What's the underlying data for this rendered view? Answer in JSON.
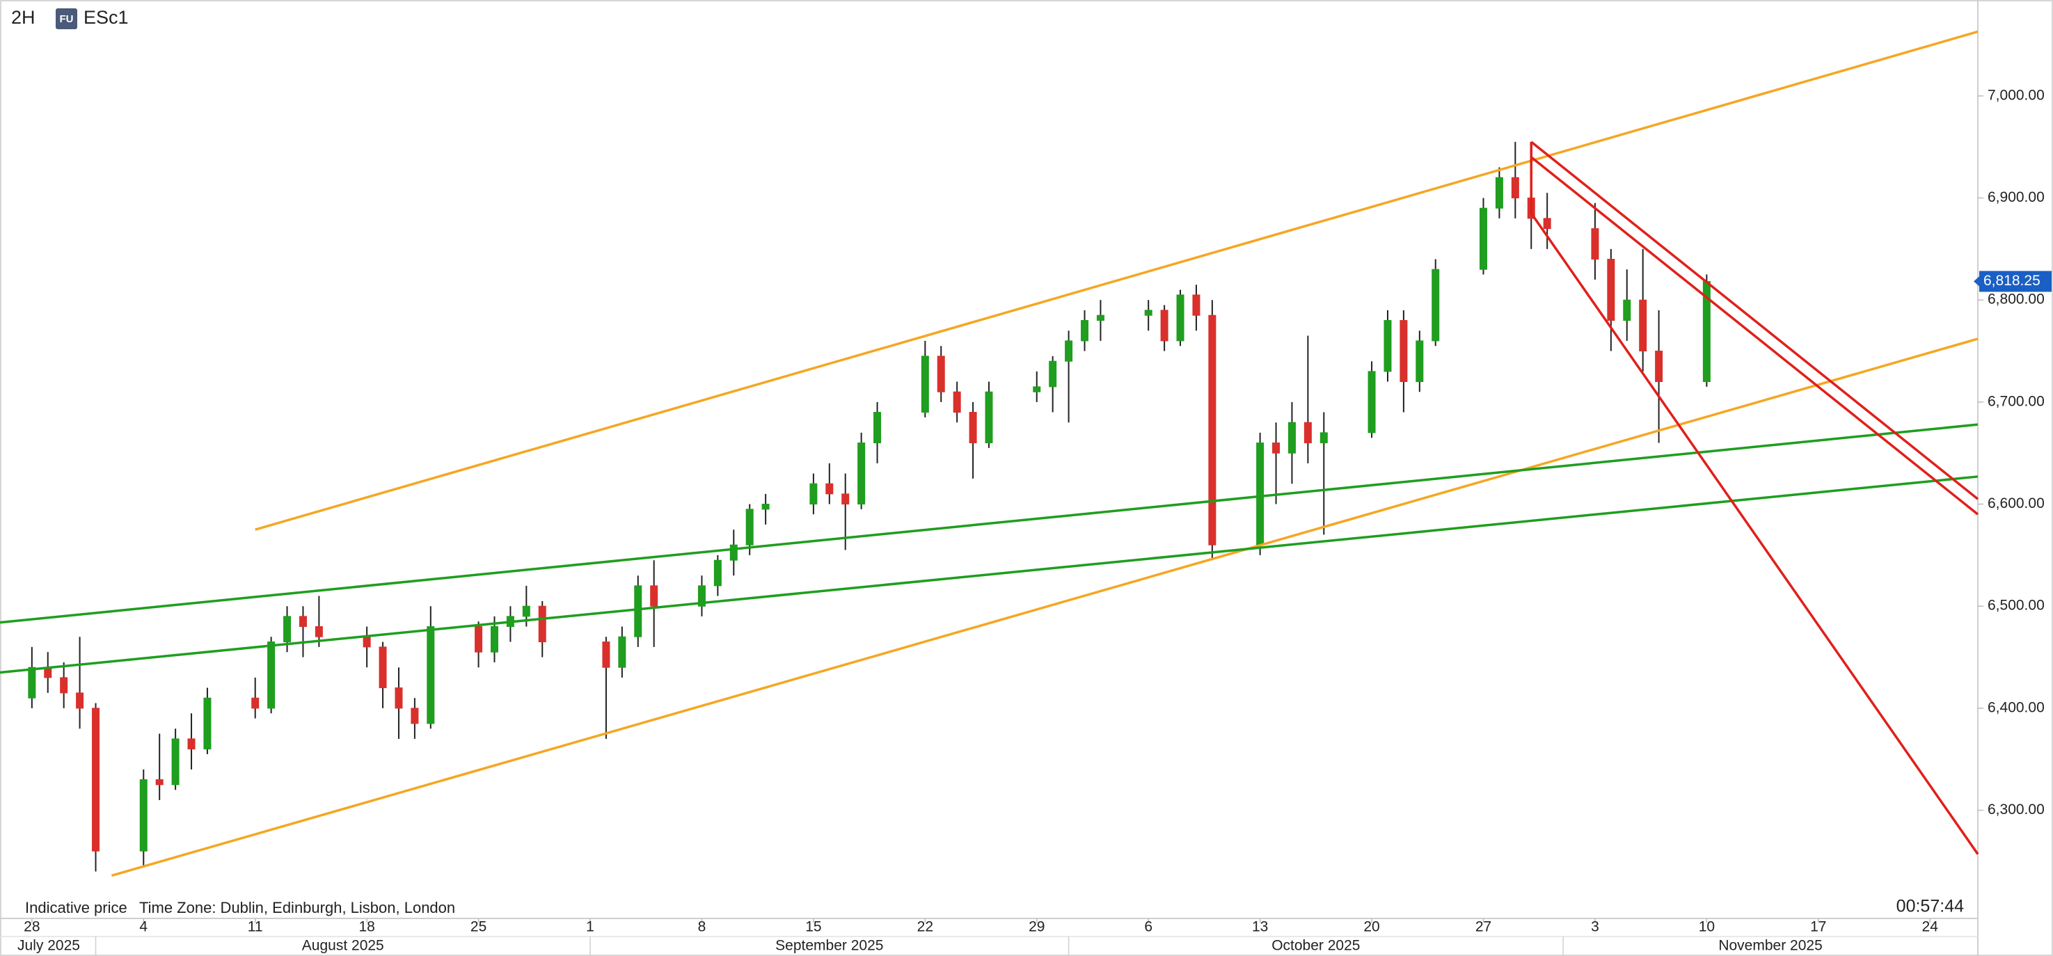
{
  "header": {
    "interval": "2H",
    "badge": "FU",
    "symbol": "ESc1"
  },
  "footer": {
    "note": "Indicative price",
    "timezone": "Time Zone: Dublin, Edinburgh, Lisbon, London",
    "clock": "00:57:44"
  },
  "chart_data": {
    "type": "candlestick",
    "x": [
      "2025-07-28",
      "2025-07-29",
      "2025-07-30",
      "2025-07-31",
      "2025-08-01",
      "2025-08-04",
      "2025-08-05",
      "2025-08-06",
      "2025-08-07",
      "2025-08-08",
      "2025-08-11",
      "2025-08-12",
      "2025-08-13",
      "2025-08-14",
      "2025-08-15",
      "2025-08-18",
      "2025-08-19",
      "2025-08-20",
      "2025-08-21",
      "2025-08-22",
      "2025-08-25",
      "2025-08-26",
      "2025-08-27",
      "2025-08-28",
      "2025-08-29",
      "2025-09-02",
      "2025-09-03",
      "2025-09-04",
      "2025-09-05",
      "2025-09-08",
      "2025-09-09",
      "2025-09-10",
      "2025-09-11",
      "2025-09-12",
      "2025-09-15",
      "2025-09-16",
      "2025-09-17",
      "2025-09-18",
      "2025-09-19",
      "2025-09-22",
      "2025-09-23",
      "2025-09-24",
      "2025-09-25",
      "2025-09-26",
      "2025-09-29",
      "2025-09-30",
      "2025-10-01",
      "2025-10-02",
      "2025-10-03",
      "2025-10-06",
      "2025-10-07",
      "2025-10-08",
      "2025-10-09",
      "2025-10-10",
      "2025-10-13",
      "2025-10-14",
      "2025-10-15",
      "2025-10-16",
      "2025-10-17",
      "2025-10-20",
      "2025-10-21",
      "2025-10-22",
      "2025-10-23",
      "2025-10-24",
      "2025-10-27",
      "2025-10-28",
      "2025-10-29",
      "2025-10-30",
      "2025-10-31",
      "2025-11-03",
      "2025-11-04",
      "2025-11-05",
      "2025-11-06",
      "2025-11-07",
      "2025-11-10"
    ],
    "open": [
      6410,
      6440,
      6430,
      6415,
      6400,
      6260,
      6330,
      6325,
      6370,
      6360,
      6410,
      6400,
      6465,
      6490,
      6480,
      6470,
      6460,
      6420,
      6400,
      6385,
      6480,
      6455,
      6480,
      6490,
      6500,
      6465,
      6440,
      6470,
      6520,
      6500,
      6520,
      6545,
      6560,
      6595,
      6600,
      6620,
      6610,
      6600,
      6660,
      6690,
      6745,
      6710,
      6690,
      6660,
      6710,
      6715,
      6740,
      6760,
      6780,
      6785,
      6790,
      6760,
      6805,
      6785,
      6560,
      6660,
      6650,
      6680,
      6660,
      6670,
      6730,
      6780,
      6720,
      6760,
      6830,
      6890,
      6920,
      6900,
      6880,
      6870,
      6840,
      6780,
      6800,
      6750,
      6720
    ],
    "high": [
      6460,
      6455,
      6445,
      6470,
      6405,
      6340,
      6375,
      6380,
      6395,
      6420,
      6430,
      6470,
      6500,
      6500,
      6510,
      6480,
      6465,
      6440,
      6410,
      6500,
      6485,
      6490,
      6500,
      6520,
      6505,
      6470,
      6480,
      6530,
      6545,
      6530,
      6550,
      6575,
      6600,
      6610,
      6630,
      6640,
      6630,
      6670,
      6700,
      6760,
      6755,
      6720,
      6700,
      6720,
      6730,
      6745,
      6770,
      6790,
      6800,
      6800,
      6795,
      6810,
      6815,
      6800,
      6670,
      6680,
      6700,
      6765,
      6690,
      6740,
      6790,
      6790,
      6770,
      6840,
      6900,
      6930,
      6955,
      6910,
      6905,
      6895,
      6850,
      6830,
      6850,
      6790,
      6825
    ],
    "low": [
      6400,
      6415,
      6400,
      6380,
      6240,
      6245,
      6310,
      6320,
      6340,
      6355,
      6390,
      6395,
      6455,
      6450,
      6460,
      6440,
      6400,
      6370,
      6370,
      6380,
      6440,
      6445,
      6465,
      6480,
      6450,
      6370,
      6430,
      6460,
      6460,
      6490,
      6510,
      6530,
      6550,
      6580,
      6590,
      6600,
      6555,
      6595,
      6640,
      6685,
      6700,
      6680,
      6625,
      6655,
      6700,
      6690,
      6680,
      6750,
      6760,
      6770,
      6750,
      6755,
      6770,
      6545,
      6550,
      6600,
      6620,
      6640,
      6570,
      6665,
      6720,
      6690,
      6710,
      6755,
      6825,
      6880,
      6880,
      6850,
      6850,
      6820,
      6750,
      6760,
      6730,
      6660,
      6715
    ],
    "close": [
      6440,
      6430,
      6415,
      6400,
      6260,
      6330,
      6325,
      6370,
      6360,
      6410,
      6400,
      6465,
      6490,
      6480,
      6470,
      6460,
      6420,
      6400,
      6385,
      6480,
      6455,
      6480,
      6490,
      6500,
      6465,
      6440,
      6470,
      6520,
      6500,
      6520,
      6545,
      6560,
      6595,
      6600,
      6620,
      6610,
      6600,
      6660,
      6690,
      6745,
      6710,
      6690,
      6660,
      6710,
      6715,
      6740,
      6760,
      6780,
      6785,
      6790,
      6760,
      6805,
      6785,
      6560,
      6660,
      6650,
      6680,
      6660,
      6670,
      6730,
      6780,
      6720,
      6760,
      6830,
      6890,
      6920,
      6900,
      6880,
      6870,
      6840,
      6780,
      6800,
      6750,
      6720,
      6818.25
    ],
    "up_color": "#1f9e1f",
    "down_color": "#d9302c",
    "last_price": {
      "value": 6818.25,
      "label": "6,818.25",
      "color": "#1a5fc4"
    },
    "xlim": [
      "2025-07-26",
      "2025-11-27"
    ],
    "xticks": [
      {
        "value": "2025-07-28",
        "label": "28"
      },
      {
        "value": "2025-08-04",
        "label": "4"
      },
      {
        "value": "2025-08-11",
        "label": "11"
      },
      {
        "value": "2025-08-18",
        "label": "18"
      },
      {
        "value": "2025-08-25",
        "label": "25"
      },
      {
        "value": "2025-09-01",
        "label": "1"
      },
      {
        "value": "2025-09-08",
        "label": "8"
      },
      {
        "value": "2025-09-15",
        "label": "15"
      },
      {
        "value": "2025-09-22",
        "label": "22"
      },
      {
        "value": "2025-09-29",
        "label": "29"
      },
      {
        "value": "2025-10-06",
        "label": "6"
      },
      {
        "value": "2025-10-13",
        "label": "13"
      },
      {
        "value": "2025-10-20",
        "label": "20"
      },
      {
        "value": "2025-10-27",
        "label": "27"
      },
      {
        "value": "2025-11-03",
        "label": "3"
      },
      {
        "value": "2025-11-10",
        "label": "10"
      },
      {
        "value": "2025-11-17",
        "label": "17"
      },
      {
        "value": "2025-11-24",
        "label": "24"
      }
    ],
    "months": [
      {
        "value": "2025-07-01",
        "label": "July 2025"
      },
      {
        "value": "2025-08-01",
        "label": "August 2025"
      },
      {
        "value": "2025-09-01",
        "label": "September 2025"
      },
      {
        "value": "2025-10-01",
        "label": "October 2025"
      },
      {
        "value": "2025-11-01",
        "label": "November 2025"
      }
    ],
    "ylim": [
      6194,
      7094
    ],
    "yticks": [
      {
        "value": 6300,
        "label": "6,300.00"
      },
      {
        "value": 6400,
        "label": "6,400.00"
      },
      {
        "value": 6500,
        "label": "6,500.00"
      },
      {
        "value": 6600,
        "label": "6,600.00"
      },
      {
        "value": 6700,
        "label": "6,700.00"
      },
      {
        "value": 6800,
        "label": "6,800.00"
      },
      {
        "value": 6900,
        "label": "6,900.00"
      },
      {
        "value": 7000,
        "label": "7,000.00"
      }
    ],
    "trendlines": [
      {
        "color": "#f5a623",
        "x": [
          "2025-08-11",
          "2025-11-27"
        ],
        "y": [
          6575,
          7063
        ]
      },
      {
        "color": "#f5a623",
        "x": [
          "2025-08-02",
          "2025-11-27"
        ],
        "y": [
          6236,
          6762
        ]
      },
      {
        "color": "#1f9e1f",
        "x": [
          "2025-07-26",
          "2025-11-27"
        ],
        "y": [
          6484,
          6678
        ]
      },
      {
        "color": "#1f9e1f",
        "x": [
          "2025-07-26",
          "2025-11-27"
        ],
        "y": [
          6435,
          6627
        ]
      },
      {
        "color": "#e0201b",
        "x": [
          "2025-10-30",
          "2025-11-27"
        ],
        "y": [
          6955,
          6605
        ]
      },
      {
        "color": "#e0201b",
        "x": [
          "2025-10-30",
          "2025-11-27"
        ],
        "y": [
          6940,
          6590
        ]
      },
      {
        "color": "#e0201b",
        "x": [
          "2025-10-30",
          "2025-10-30",
          "2025-11-27"
        ],
        "y": [
          6955,
          6885,
          6257
        ]
      }
    ]
  }
}
